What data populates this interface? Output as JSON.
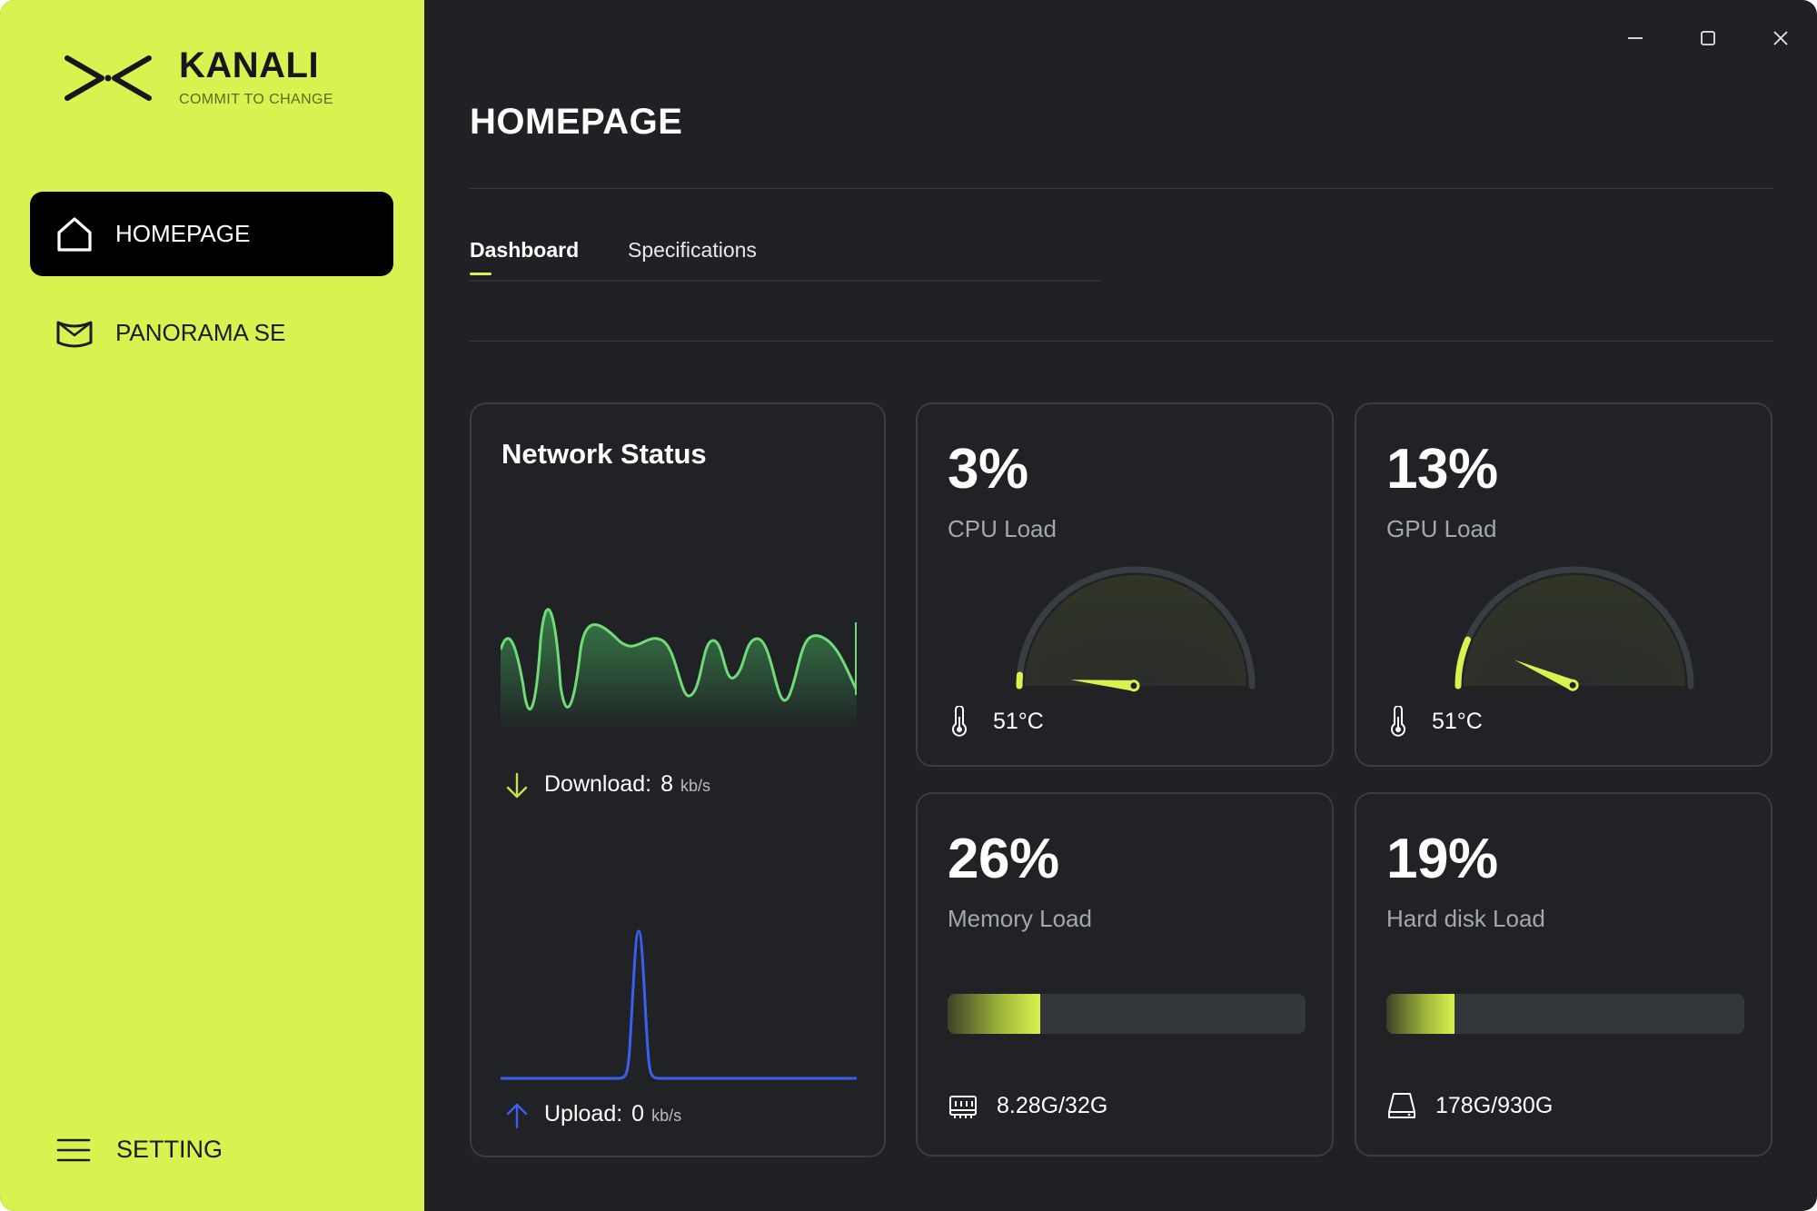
{
  "brand": {
    "name": "KANALI",
    "tagline": "COMMIT TO CHANGE",
    "accent": "#d9f24f"
  },
  "sidebar": {
    "items": [
      {
        "label": "HOMEPAGE",
        "icon": "home-icon",
        "active": true
      },
      {
        "label": "PANORAMA SE",
        "icon": "panorama-icon",
        "active": false
      }
    ],
    "setting": {
      "label": "SETTING",
      "icon": "menu-icon"
    }
  },
  "window": {
    "controls": [
      "minimize-icon",
      "maximize-icon",
      "close-icon"
    ]
  },
  "header": {
    "title": "HOMEPAGE"
  },
  "tabs": [
    {
      "label": "Dashboard",
      "active": true
    },
    {
      "label": "Specifications",
      "active": false
    }
  ],
  "network": {
    "title": "Network Status",
    "download": {
      "label": "Download:",
      "value": "8",
      "unit": "kb/s",
      "color": "#5dd36a"
    },
    "upload": {
      "label": "Upload:",
      "value": "0",
      "unit": "kb/s",
      "color": "#3a5ff0"
    }
  },
  "cpu": {
    "percent": "3%",
    "label": "CPU Load",
    "temp": "51°C",
    "level": 0.03
  },
  "gpu": {
    "percent": "13%",
    "label": "GPU Load",
    "temp": "51°C",
    "level": 0.13
  },
  "memory": {
    "percent": "26%",
    "label": "Memory Load",
    "usage": "8.28G/32G",
    "level": 0.26
  },
  "disk": {
    "percent": "19%",
    "label": "Hard disk Load",
    "usage": "178G/930G",
    "level": 0.19
  }
}
